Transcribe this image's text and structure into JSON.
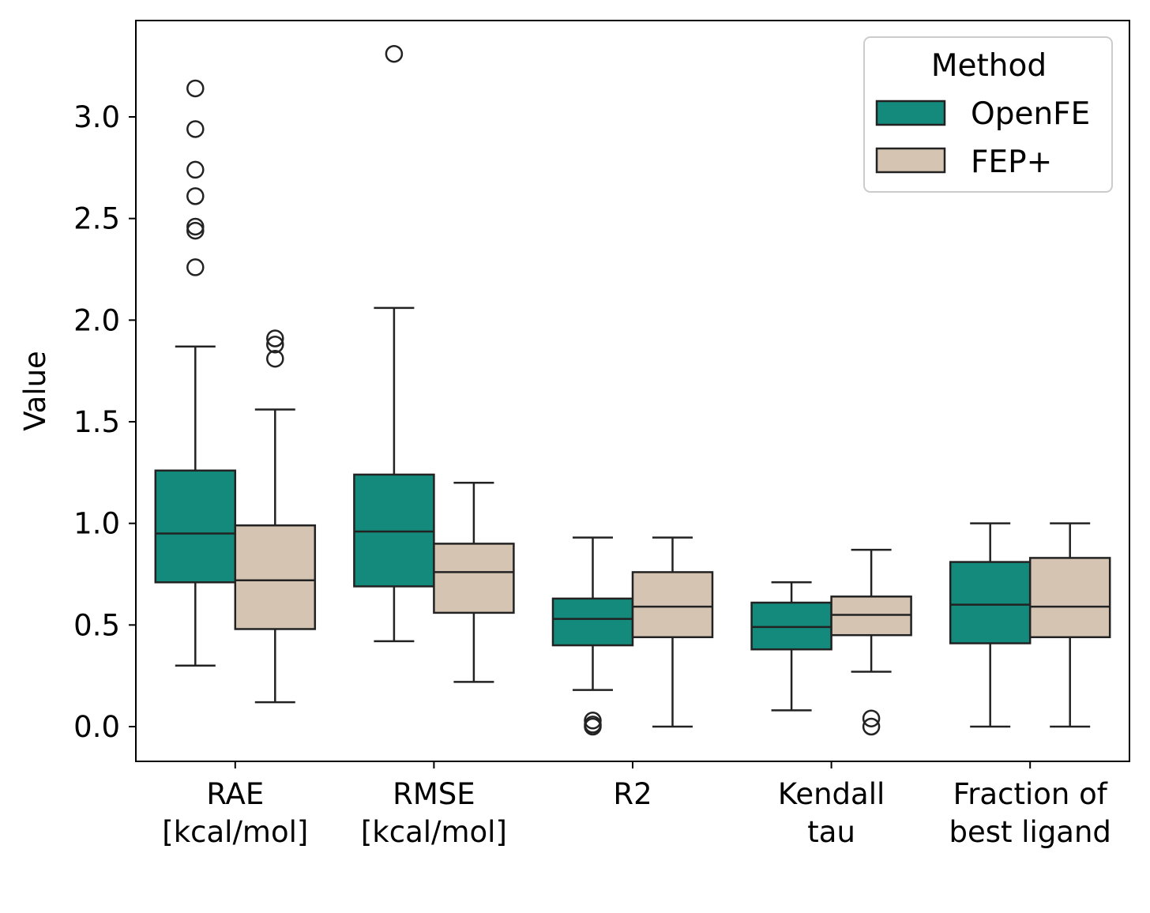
{
  "chart_data": {
    "type": "boxplot",
    "title": "",
    "xlabel": "",
    "ylabel": "Value",
    "ylim": [
      -0.17,
      3.47
    ],
    "yticks": [
      0.0,
      0.5,
      1.0,
      1.5,
      2.0,
      2.5,
      3.0
    ],
    "ytick_labels": [
      "0.0",
      "0.5",
      "1.0",
      "1.5",
      "2.0",
      "2.5",
      "3.0"
    ],
    "categories": [
      {
        "lines": [
          "RAE",
          "[kcal/mol]"
        ]
      },
      {
        "lines": [
          "RMSE",
          "[kcal/mol]"
        ]
      },
      {
        "lines": [
          "R2"
        ]
      },
      {
        "lines": [
          "Kendall",
          "tau"
        ]
      },
      {
        "lines": [
          "Fraction of",
          "best ligand"
        ]
      }
    ],
    "legend": {
      "title": "Method",
      "position": "top-right"
    },
    "series": [
      {
        "name": "OpenFE",
        "color": "#138a7b",
        "boxes": [
          {
            "whisker_low": 0.3,
            "q1": 0.71,
            "median": 0.95,
            "q3": 1.26,
            "whisker_high": 1.87,
            "outliers": [
              2.26,
              2.44,
              2.46,
              2.61,
              2.74,
              2.94,
              3.14
            ]
          },
          {
            "whisker_low": 0.42,
            "q1": 0.69,
            "median": 0.96,
            "q3": 1.24,
            "whisker_high": 2.06,
            "outliers": [
              3.31
            ]
          },
          {
            "whisker_low": 0.18,
            "q1": 0.4,
            "median": 0.53,
            "q3": 0.63,
            "whisker_high": 0.93,
            "outliers": [
              0.0,
              0.01,
              0.03
            ]
          },
          {
            "whisker_low": 0.08,
            "q1": 0.38,
            "median": 0.49,
            "q3": 0.61,
            "whisker_high": 0.71,
            "outliers": []
          },
          {
            "whisker_low": 0.0,
            "q1": 0.41,
            "median": 0.6,
            "q3": 0.81,
            "whisker_high": 1.0,
            "outliers": []
          }
        ]
      },
      {
        "name": "FEP+",
        "color": "#d5c4b2",
        "boxes": [
          {
            "whisker_low": 0.12,
            "q1": 0.48,
            "median": 0.72,
            "q3": 0.99,
            "whisker_high": 1.56,
            "outliers": [
              1.81,
              1.88,
              1.91
            ]
          },
          {
            "whisker_low": 0.22,
            "q1": 0.56,
            "median": 0.76,
            "q3": 0.9,
            "whisker_high": 1.2,
            "outliers": []
          },
          {
            "whisker_low": 0.0,
            "q1": 0.44,
            "median": 0.59,
            "q3": 0.76,
            "whisker_high": 0.93,
            "outliers": []
          },
          {
            "whisker_low": 0.27,
            "q1": 0.45,
            "median": 0.55,
            "q3": 0.64,
            "whisker_high": 0.87,
            "outliers": [
              0.0,
              0.04
            ]
          },
          {
            "whisker_low": 0.0,
            "q1": 0.44,
            "median": 0.59,
            "q3": 0.83,
            "whisker_high": 1.0,
            "outliers": []
          }
        ]
      }
    ]
  }
}
